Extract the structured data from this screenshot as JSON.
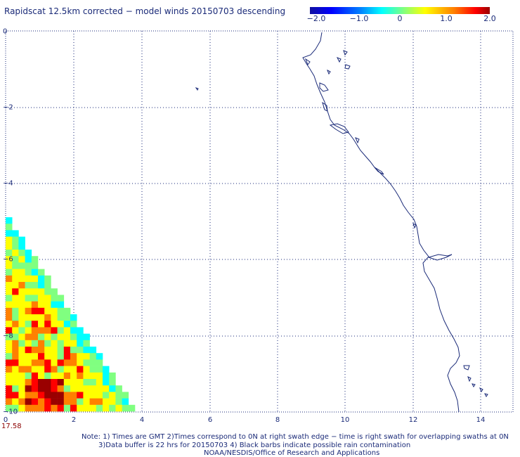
{
  "title": "Rapidscat 12.5km corrected − model winds 20150703 descending",
  "colorbar": {
    "ticks": [
      "−2.0",
      "−1.0",
      "0",
      "1.0",
      "2.0"
    ],
    "colors": [
      "#1010a0",
      "#0000ff",
      "#0080ff",
      "#00ffff",
      "#80ff80",
      "#ffff00",
      "#ff8000",
      "#ff0000",
      "#9a0000"
    ]
  },
  "axes": {
    "y_ticks": [
      "0",
      "−2",
      "−4",
      "−6",
      "−8",
      "−10"
    ],
    "x_ticks": [
      "0",
      "2",
      "4",
      "6",
      "8",
      "10",
      "12",
      "14"
    ]
  },
  "time_label": "17.58",
  "notes": {
    "line1": "Note: 1) Times are GMT 2)Times correspond to 0N at right swath edge − time is right swath for overlapping swaths at 0N",
    "line2": "3)Data buffer is 22 hrs for 20150703 4) Black barbs indicate possible rain contamination",
    "line3": "NOAA/NESDIS/Office of Research and Applications"
  }
}
